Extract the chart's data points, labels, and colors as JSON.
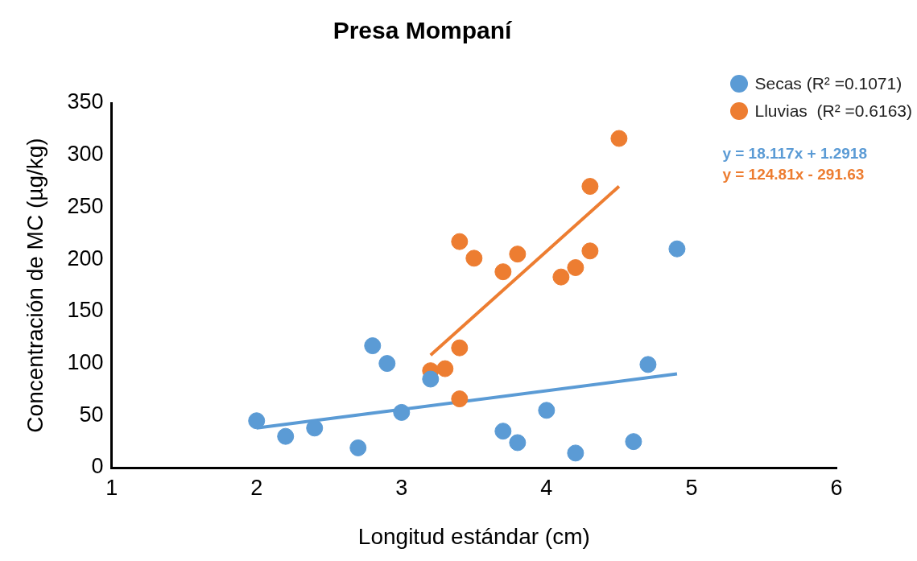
{
  "chart_data": {
    "type": "scatter",
    "title": "Presa Mompaní",
    "xlabel": "Longitud estándar (cm)",
    "ylabel": "Concentración de MC (µg/kg)",
    "xlim": [
      1,
      6
    ],
    "xticks": [
      1,
      2,
      3,
      4,
      5,
      6
    ],
    "ylim": [
      0,
      350
    ],
    "yticks": [
      0,
      50,
      100,
      150,
      200,
      250,
      300,
      350
    ],
    "grid": false,
    "legend": "top right",
    "marker": "circle",
    "series": [
      {
        "name": "Secas (R² =0.1071)",
        "color": "#5b9bd5",
        "x": [
          2.0,
          2.2,
          2.4,
          2.7,
          2.8,
          2.9,
          3.0,
          3.2,
          3.7,
          3.8,
          4.0,
          4.2,
          4.6,
          4.7,
          4.9
        ],
        "values": [
          45,
          30,
          38,
          19,
          117,
          100,
          53,
          85,
          35,
          24,
          55,
          14,
          25,
          99,
          210
        ]
      },
      {
        "name": "Lluvias  (R² =0.6163)",
        "color": "#ed7d31",
        "x": [
          3.2,
          3.3,
          3.4,
          3.4,
          3.4,
          3.5,
          3.7,
          3.8,
          4.1,
          4.2,
          4.3,
          4.3,
          4.5
        ],
        "values": [
          93,
          95,
          115,
          217,
          66,
          201,
          188,
          205,
          183,
          192,
          208,
          270,
          316
        ]
      },
      {
        "type": "line",
        "color": "#5b9bd5",
        "marker": "none",
        "x": [
          2.0,
          4.9
        ],
        "values": [
          38,
          90
        ]
      },
      {
        "type": "line",
        "color": "#ed7d31",
        "marker": "none",
        "x": [
          3.2,
          4.5
        ],
        "values": [
          108,
          270
        ]
      }
    ],
    "annotations": [
      "y = 18.117x + 1.2918",
      "y = 124.81x - 291.63"
    ]
  }
}
